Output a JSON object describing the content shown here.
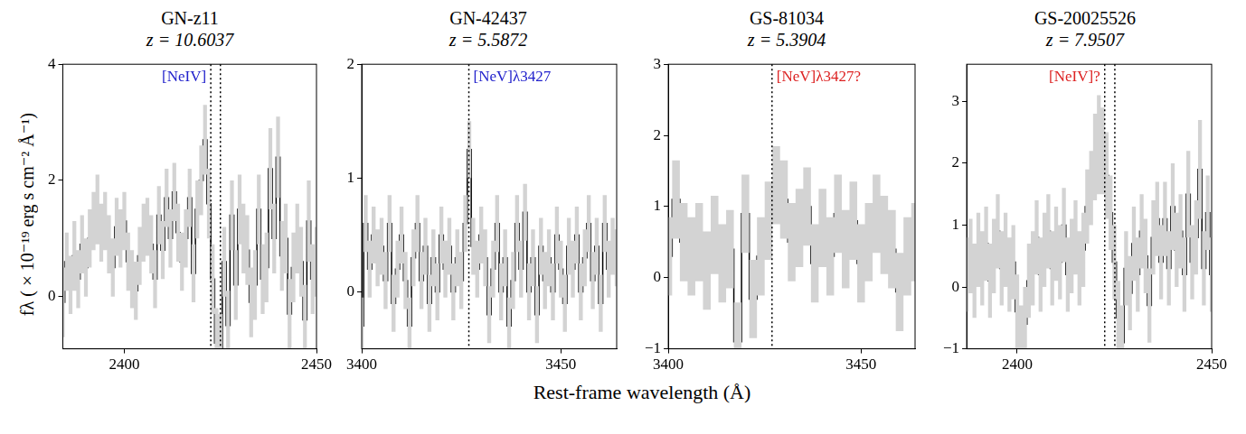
{
  "y_label": "fλ (×10⁻¹⁹ erg s cm⁻² Å⁻¹)",
  "x_label": "Rest-frame wavelength (Å)",
  "chart_data": [
    {
      "type": "line",
      "title": "GN-z11",
      "subtitle": "z = 10.6037",
      "color": "#000000",
      "line_style": "steps",
      "grid": false,
      "xlim": [
        2384,
        2450
      ],
      "xticks": [
        2400,
        2450
      ],
      "ylim": [
        -0.9,
        4
      ],
      "yticks": [
        0,
        2,
        4
      ],
      "x": [
        2384,
        2385,
        2386,
        2387,
        2388,
        2389,
        2390,
        2391,
        2392,
        2393,
        2394,
        2395,
        2396,
        2397,
        2398,
        2399,
        2400,
        2401,
        2402,
        2403,
        2404,
        2405,
        2406,
        2407,
        2408,
        2409,
        2410,
        2411,
        2412,
        2413,
        2414,
        2415,
        2416,
        2417,
        2418,
        2419,
        2420,
        2421,
        2422,
        2423,
        2424,
        2425,
        2426,
        2427,
        2428,
        2429,
        2430,
        2431,
        2432,
        2433,
        2434,
        2435,
        2436,
        2437,
        2438,
        2439,
        2440,
        2441,
        2442,
        2443,
        2444,
        2445,
        2446,
        2447,
        2448,
        2449,
        2450
      ],
      "values": [
        -0.1,
        0.6,
        0.2,
        0.7,
        0.3,
        0.9,
        0.5,
        1.0,
        1.3,
        1.5,
        1.1,
        1.3,
        0.9,
        0.5,
        1.2,
        1.0,
        1.3,
        0.6,
        0.3,
        0.1,
        0.7,
        1.1,
        1.2,
        0.9,
        0.3,
        1.4,
        0.8,
        1.7,
        1.0,
        1.8,
        1.1,
        0.6,
        1.0,
        1.7,
        0.4,
        1.5,
        2.0,
        2.7,
        1.6,
        0.3,
        -0.8,
        -0.9,
        0.6,
        -0.5,
        1.4,
        0.2,
        1.5,
        1.0,
        0.8,
        -0.1,
        0.2,
        1.5,
        0.3,
        0.5,
        2.2,
        1.0,
        2.4,
        0.7,
        1.0,
        -0.3,
        0.5,
        1.0,
        0.6,
        -0.4,
        1.3,
        0.3,
        0.6
      ],
      "errors": [
        0.6,
        0.5,
        0.5,
        0.6,
        0.5,
        0.5,
        0.5,
        0.5,
        0.5,
        0.6,
        0.5,
        0.5,
        0.5,
        0.5,
        0.5,
        0.5,
        0.5,
        0.5,
        0.5,
        0.5,
        0.5,
        0.5,
        0.5,
        0.5,
        0.5,
        0.5,
        0.5,
        0.5,
        0.5,
        0.5,
        0.5,
        0.5,
        0.5,
        0.5,
        0.5,
        0.5,
        0.6,
        0.6,
        0.6,
        0.6,
        0.6,
        0.6,
        0.6,
        0.6,
        0.6,
        0.6,
        0.6,
        0.6,
        0.6,
        0.6,
        0.6,
        0.6,
        0.6,
        0.6,
        0.7,
        0.6,
        0.7,
        0.6,
        0.6,
        0.6,
        0.6,
        0.6,
        0.6,
        0.6,
        0.7,
        0.6,
        0.6
      ],
      "annotations": [
        {
          "text": "[NeIV]",
          "color": "#2222cc",
          "lines": [
            2422.5,
            2425.0
          ]
        }
      ]
    },
    {
      "type": "line",
      "title": "GN-42437",
      "subtitle": "z = 5.5872",
      "color": "#000000",
      "line_style": "steps",
      "grid": false,
      "xlim": [
        3400,
        3464
      ],
      "xticks": [
        3400,
        3450
      ],
      "ylim": [
        -0.5,
        2
      ],
      "yticks": [
        0,
        1,
        2
      ],
      "x": [
        3400,
        3401,
        3402,
        3403,
        3404,
        3405,
        3406,
        3407,
        3408,
        3409,
        3410,
        3411,
        3412,
        3413,
        3414,
        3415,
        3416,
        3417,
        3418,
        3419,
        3420,
        3421,
        3422,
        3423,
        3424,
        3425,
        3426,
        3427,
        3428,
        3429,
        3430,
        3431,
        3432,
        3433,
        3434,
        3435,
        3436,
        3437,
        3438,
        3439,
        3440,
        3441,
        3442,
        3443,
        3444,
        3445,
        3446,
        3447,
        3448,
        3449,
        3450,
        3451,
        3452,
        3453,
        3454,
        3455,
        3456,
        3457,
        3458,
        3459,
        3460,
        3461,
        3462,
        3463,
        3464
      ],
      "values": [
        -0.3,
        0.6,
        0.2,
        0.5,
        0.3,
        0.4,
        0.1,
        0.6,
        -0.1,
        0.2,
        0.5,
        0.1,
        -0.3,
        0.3,
        0.6,
        0.1,
        0.4,
        -0.1,
        0.3,
        0.0,
        0.5,
        0.2,
        0.4,
        0.0,
        0.3,
        0.1,
        0.6,
        1.25,
        0.4,
        0.2,
        0.5,
        0.3,
        -0.2,
        0.2,
        0.6,
        0.0,
        0.3,
        -0.3,
        0.1,
        0.6,
        0.2,
        0.7,
        0.0,
        0.3,
        -0.2,
        0.4,
        0.1,
        0.3,
        0.0,
        0.5,
        0.2,
        -0.1,
        0.4,
        0.2,
        0.5,
        0.0,
        0.3,
        0.6,
        0.1,
        0.4,
        -0.1,
        0.6,
        0.2,
        0.4,
        0.3
      ],
      "errors": [
        0.25,
        0.25,
        0.25,
        0.25,
        0.25,
        0.25,
        0.25,
        0.25,
        0.25,
        0.25,
        0.25,
        0.25,
        0.25,
        0.25,
        0.25,
        0.25,
        0.25,
        0.25,
        0.25,
        0.25,
        0.25,
        0.25,
        0.25,
        0.25,
        0.25,
        0.25,
        0.25,
        0.25,
        0.25,
        0.25,
        0.25,
        0.25,
        0.25,
        0.25,
        0.25,
        0.25,
        0.25,
        0.25,
        0.25,
        0.25,
        0.25,
        0.25,
        0.25,
        0.25,
        0.25,
        0.25,
        0.25,
        0.25,
        0.25,
        0.25,
        0.25,
        0.25,
        0.25,
        0.25,
        0.25,
        0.25,
        0.25,
        0.25,
        0.25,
        0.25,
        0.25,
        0.25,
        0.25,
        0.25,
        0.25
      ],
      "annotations": [
        {
          "text": "[NeV]λ3427",
          "color": "#2222cc",
          "lines": [
            3426.9
          ]
        }
      ]
    },
    {
      "type": "line",
      "title": "GS-81034",
      "subtitle": "z = 5.3904",
      "color": "#000000",
      "line_style": "steps",
      "grid": false,
      "xlim": [
        3400,
        3464
      ],
      "xticks": [
        3400,
        3450
      ],
      "ylim": [
        -1,
        3
      ],
      "yticks": [
        {
          "value": -1,
          "label": "−1"
        },
        0,
        1,
        2,
        3
      ],
      "x": [
        3400,
        3402,
        3404,
        3406,
        3408,
        3410,
        3412,
        3414,
        3416,
        3418,
        3420,
        3422,
        3424,
        3426,
        3428,
        3430,
        3432,
        3434,
        3436,
        3438,
        3440,
        3442,
        3444,
        3446,
        3448,
        3450,
        3452,
        3454,
        3456,
        3458,
        3460,
        3462,
        3464
      ],
      "values": [
        0.3,
        1.1,
        0.5,
        0.3,
        0.5,
        0.1,
        0.6,
        0.2,
        0.4,
        -0.9,
        0.9,
        -0.3,
        0.3,
        0.8,
        1.3,
        1.1,
        0.5,
        0.7,
        1.0,
        0.2,
        0.7,
        0.3,
        0.9,
        0.4,
        0.8,
        0.2,
        0.5,
        0.9,
        0.6,
        0.4,
        -0.2,
        0.3,
        0.5
      ],
      "errors": [
        0.55,
        0.55,
        0.55,
        0.55,
        0.55,
        0.55,
        0.55,
        0.55,
        0.55,
        0.55,
        0.55,
        0.55,
        0.55,
        0.55,
        0.55,
        0.55,
        0.55,
        0.55,
        0.55,
        0.55,
        0.55,
        0.55,
        0.55,
        0.55,
        0.55,
        0.55,
        0.55,
        0.55,
        0.55,
        0.55,
        0.55,
        0.55,
        0.55
      ],
      "annotations": [
        {
          "text": "[NeV]λ3427?",
          "color": "#dd2222",
          "lines": [
            3426.9
          ]
        }
      ]
    },
    {
      "type": "line",
      "title": "GS-20025526",
      "subtitle": "z = 7.9507",
      "color": "#000000",
      "line_style": "steps",
      "grid": false,
      "xlim": [
        2387,
        2450
      ],
      "xticks": [
        2400,
        2450
      ],
      "ylim": [
        -1,
        3.6
      ],
      "yticks": [
        {
          "value": -1,
          "label": "−1"
        },
        0,
        1,
        2,
        3
      ],
      "x": [
        2387,
        2388,
        2389,
        2390,
        2391,
        2392,
        2393,
        2394,
        2395,
        2396,
        2397,
        2398,
        2399,
        2400,
        2401,
        2402,
        2403,
        2404,
        2405,
        2406,
        2407,
        2408,
        2409,
        2410,
        2411,
        2412,
        2413,
        2414,
        2415,
        2416,
        2417,
        2418,
        2419,
        2420,
        2421,
        2422,
        2423,
        2424,
        2425,
        2426,
        2427,
        2428,
        2429,
        2430,
        2431,
        2432,
        2433,
        2434,
        2435,
        2436,
        2437,
        2438,
        2439,
        2440,
        2441,
        2442,
        2443,
        2444,
        2445,
        2446,
        2447,
        2448,
        2449,
        2450
      ],
      "values": [
        0.2,
        0.5,
        0.1,
        0.6,
        0.3,
        0.7,
        0.1,
        0.5,
        0.9,
        0.3,
        0.6,
        0.2,
        0.4,
        -0.4,
        -0.9,
        -0.6,
        0.1,
        0.3,
        0.8,
        0.2,
        0.6,
        0.9,
        0.3,
        0.7,
        0.4,
        1.0,
        0.2,
        0.5,
        0.8,
        0.3,
        0.6,
        1.3,
        1.6,
        2.1,
        2.3,
        2.2,
        1.8,
        1.2,
        0.4,
        -0.5,
        -0.9,
        0.3,
        -0.1,
        0.7,
        0.2,
        0.9,
        0.5,
        -0.3,
        0.8,
        1.1,
        0.4,
        1.1,
        0.3,
        1.3,
        0.6,
        0.9,
        0.2,
        1.5,
        0.4,
        0.8,
        1.9,
        0.3,
        1.2,
        0.2
      ],
      "errors": [
        0.6,
        0.6,
        0.6,
        0.6,
        0.6,
        0.6,
        0.6,
        0.6,
        0.6,
        0.6,
        0.6,
        0.6,
        0.6,
        0.6,
        0.6,
        0.6,
        0.6,
        0.6,
        0.6,
        0.6,
        0.6,
        0.6,
        0.6,
        0.6,
        0.6,
        0.6,
        0.6,
        0.6,
        0.6,
        0.6,
        0.6,
        0.6,
        0.6,
        0.7,
        0.8,
        0.7,
        0.7,
        0.6,
        0.6,
        0.6,
        0.6,
        0.6,
        0.6,
        0.6,
        0.6,
        0.6,
        0.6,
        0.6,
        0.6,
        0.6,
        0.6,
        0.6,
        0.6,
        0.7,
        0.6,
        0.6,
        0.6,
        0.7,
        0.6,
        0.6,
        0.8,
        0.6,
        0.6,
        0.6
      ],
      "annotations": [
        {
          "text": "[NeIV]?",
          "color": "#dd2222",
          "lines": [
            2422.5,
            2425.1
          ]
        }
      ]
    }
  ]
}
